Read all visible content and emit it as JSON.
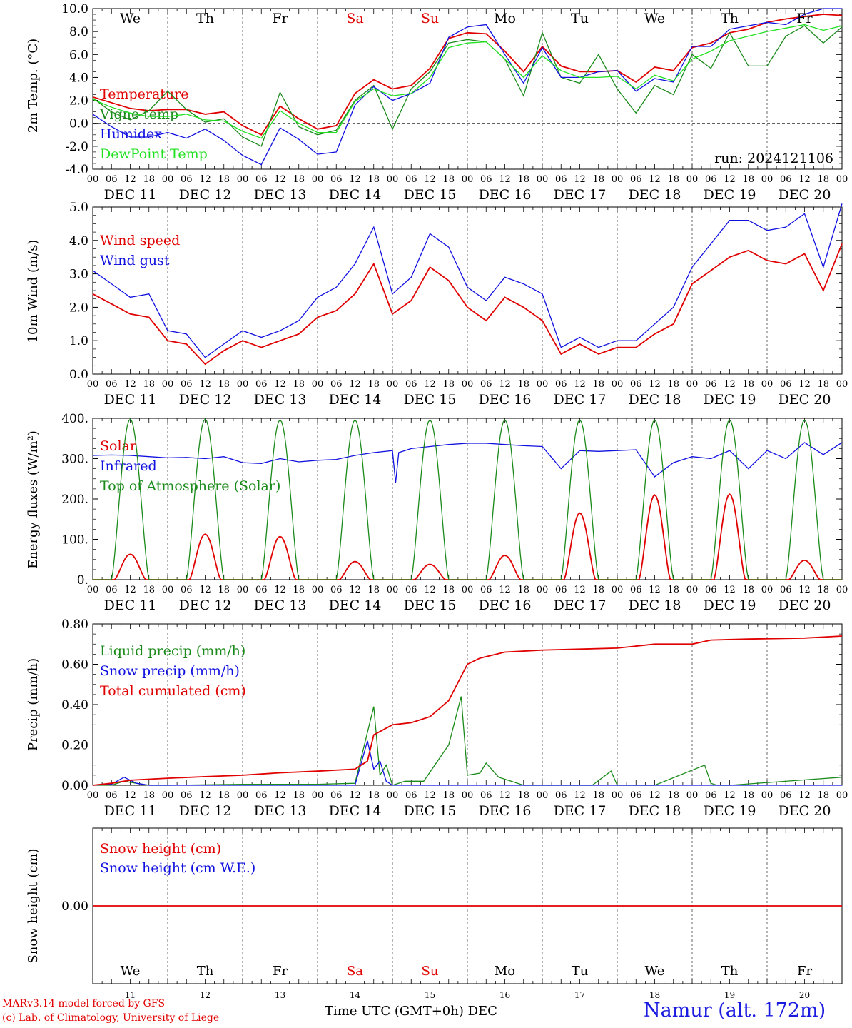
{
  "days": [
    "We",
    "Th",
    "Fr",
    "Sa",
    "Su",
    "Mo",
    "Tu",
    "We",
    "Th",
    "Fr"
  ],
  "day_colors": [
    "#000",
    "#000",
    "#000",
    "#e00000",
    "#e00000",
    "#000",
    "#000",
    "#000",
    "#000",
    "#000"
  ],
  "dates": [
    "DEC 11",
    "DEC 12",
    "DEC 13",
    "DEC 14",
    "DEC 15",
    "DEC 16",
    "DEC 17",
    "DEC 18",
    "DEC 19",
    "DEC 20"
  ],
  "date_nums": [
    "11",
    "12",
    "13",
    "14",
    "15",
    "16",
    "17",
    "18",
    "19",
    "20"
  ],
  "hour_labels": [
    "00",
    "06",
    "12",
    "18"
  ],
  "final_hour_label": "00",
  "footer": {
    "model": "MARv3.14 model forced by GFS",
    "lab": "(c) Lab. of Climatology, University of Liege",
    "xlabel": "Time UTC (GMT+0h) DEC",
    "station": "Namur (alt. 172m)",
    "run": "run: 2024121106"
  },
  "chart_data": [
    {
      "type": "line",
      "ylabel": "2m Temp. (°C)",
      "ylim": [
        -4,
        10
      ],
      "yticks": [
        -4,
        -2,
        0,
        2,
        4,
        6,
        8,
        10
      ],
      "ytick_labels": [
        "-4.0",
        "-2.0",
        "0.0",
        "2.0",
        "4.0",
        "6.0",
        "8.0",
        "10.0"
      ],
      "zero_line": 0,
      "x_unit": "hours since DEC 11 00 UTC",
      "series": [
        {
          "name": "Temperature",
          "color": "#e00000",
          "x": [
            0,
            6,
            12,
            18,
            24,
            30,
            36,
            42,
            48,
            54,
            60,
            66,
            72,
            78,
            84,
            90,
            96,
            102,
            108,
            114,
            120,
            126,
            132,
            138,
            144,
            150,
            156,
            162,
            168,
            174,
            180,
            186,
            192,
            198,
            204,
            210,
            216,
            222,
            228,
            234,
            240
          ],
          "y": [
            2.3,
            1.8,
            1.3,
            1.1,
            1.2,
            1.2,
            0.8,
            1.0,
            -0.2,
            -1.0,
            1.5,
            0.4,
            -0.5,
            -0.2,
            2.6,
            3.8,
            3.0,
            3.3,
            4.8,
            7.4,
            7.9,
            7.8,
            6.3,
            4.5,
            6.7,
            5.0,
            4.5,
            4.5,
            4.6,
            3.6,
            4.9,
            4.6,
            6.6,
            7.0,
            7.9,
            8.2,
            8.8,
            9.1,
            9.3,
            9.5,
            9.4
          ]
        },
        {
          "name": "Vigne temp",
          "color": "#1a8a1a",
          "x": [
            0,
            6,
            12,
            18,
            24,
            30,
            36,
            42,
            48,
            54,
            60,
            66,
            72,
            78,
            84,
            90,
            96,
            102,
            108,
            114,
            120,
            126,
            132,
            138,
            144,
            150,
            156,
            162,
            168,
            174,
            180,
            186,
            192,
            198,
            204,
            210,
            216,
            222,
            228,
            234,
            240
          ],
          "y": [
            2.2,
            1.0,
            0.3,
            1.1,
            2.8,
            1.2,
            0.1,
            0.4,
            -1.2,
            -2.0,
            2.7,
            -0.3,
            -1.0,
            -0.6,
            2.0,
            3.3,
            -0.5,
            3.0,
            4.5,
            7.0,
            7.3,
            7.1,
            5.6,
            2.4,
            7.9,
            4.0,
            3.5,
            6.0,
            3.0,
            0.9,
            3.3,
            2.5,
            6.0,
            4.8,
            7.9,
            5.0,
            5.0,
            7.6,
            8.5,
            7.0,
            8.4
          ]
        },
        {
          "name": "Humidex",
          "color": "#1010e0",
          "x": [
            0,
            6,
            12,
            18,
            24,
            30,
            36,
            42,
            48,
            54,
            60,
            66,
            72,
            78,
            84,
            90,
            96,
            102,
            108,
            114,
            120,
            126,
            132,
            138,
            144,
            150,
            156,
            162,
            168,
            174,
            180,
            186,
            192,
            198,
            204,
            210,
            216,
            222,
            228,
            234,
            240
          ],
          "y": [
            0.8,
            -0.3,
            -1.2,
            -1.2,
            -0.8,
            -1.3,
            -0.5,
            -1.5,
            -2.8,
            -3.6,
            -0.4,
            -1.4,
            -2.7,
            -2.5,
            1.6,
            3.2,
            2.0,
            2.6,
            3.5,
            7.5,
            8.4,
            8.6,
            6.0,
            3.5,
            6.6,
            4.0,
            4.0,
            4.5,
            4.6,
            2.8,
            3.9,
            3.6,
            6.7,
            6.7,
            8.2,
            8.5,
            8.8,
            8.6,
            9.5,
            10.0,
            10.0
          ]
        },
        {
          "name": "DewPoint Temp",
          "color": "#22e022",
          "x": [
            0,
            6,
            12,
            18,
            24,
            30,
            36,
            42,
            48,
            54,
            60,
            66,
            72,
            78,
            84,
            90,
            96,
            102,
            108,
            114,
            120,
            126,
            132,
            138,
            144,
            150,
            156,
            162,
            168,
            174,
            180,
            186,
            192,
            198,
            204,
            210,
            216,
            222,
            228,
            234,
            240
          ],
          "y": [
            2.1,
            1.4,
            0.9,
            0.6,
            0.6,
            0.8,
            0.3,
            0.2,
            -0.7,
            -1.3,
            1.1,
            0.0,
            -0.8,
            -0.8,
            1.9,
            3.0,
            2.4,
            2.6,
            4.0,
            6.6,
            7.0,
            7.1,
            5.6,
            4.0,
            5.9,
            4.6,
            4.0,
            4.0,
            4.1,
            3.0,
            4.2,
            3.7,
            5.6,
            6.3,
            7.2,
            7.6,
            8.0,
            8.3,
            8.6,
            8.1,
            8.5
          ]
        }
      ],
      "legend_placement": "left"
    },
    {
      "type": "line",
      "ylabel": "10m Wind (m/s)",
      "ylim": [
        0,
        5
      ],
      "yticks": [
        0,
        1,
        2,
        3,
        4,
        5
      ],
      "ytick_labels": [
        "0.0",
        "1.0",
        "2.0",
        "3.0",
        "4.0",
        "5.0"
      ],
      "ref_line": 5,
      "series": [
        {
          "name": "Wind speed",
          "color": "#e00000",
          "x": [
            0,
            6,
            12,
            18,
            24,
            30,
            36,
            42,
            48,
            54,
            60,
            66,
            72,
            78,
            84,
            90,
            96,
            102,
            108,
            114,
            120,
            126,
            132,
            138,
            144,
            150,
            156,
            162,
            168,
            174,
            180,
            186,
            192,
            198,
            204,
            210,
            216,
            222,
            228,
            234,
            240
          ],
          "y": [
            2.4,
            2.1,
            1.8,
            1.7,
            1.0,
            0.9,
            0.3,
            0.7,
            1.0,
            0.8,
            1.0,
            1.2,
            1.7,
            1.9,
            2.4,
            3.3,
            1.8,
            2.2,
            3.2,
            2.8,
            2.0,
            1.6,
            2.3,
            2.0,
            1.6,
            0.6,
            0.9,
            0.6,
            0.8,
            0.8,
            1.2,
            1.5,
            2.7,
            3.1,
            3.5,
            3.7,
            3.4,
            3.3,
            3.6,
            2.5,
            3.9
          ]
        },
        {
          "name": "Wind gust",
          "color": "#1010e0",
          "x": [
            0,
            6,
            12,
            18,
            24,
            30,
            36,
            42,
            48,
            54,
            60,
            66,
            72,
            78,
            84,
            90,
            96,
            102,
            108,
            114,
            120,
            126,
            132,
            138,
            144,
            150,
            156,
            162,
            168,
            174,
            180,
            186,
            192,
            198,
            204,
            210,
            216,
            222,
            228,
            234,
            240
          ],
          "y": [
            3.1,
            2.7,
            2.3,
            2.4,
            1.3,
            1.2,
            0.5,
            0.9,
            1.3,
            1.1,
            1.3,
            1.6,
            2.3,
            2.6,
            3.3,
            4.4,
            2.4,
            2.9,
            4.2,
            3.8,
            2.6,
            2.2,
            2.9,
            2.7,
            2.4,
            0.8,
            1.1,
            0.8,
            1.0,
            1.0,
            1.5,
            2.0,
            3.2,
            3.9,
            4.6,
            4.6,
            4.3,
            4.4,
            4.8,
            3.2,
            5.1
          ]
        }
      ],
      "legend_placement": "left"
    },
    {
      "type": "line",
      "ylabel": "Energy fluxes (W/m²)",
      "ylim": [
        0,
        400
      ],
      "yticks": [
        0,
        100,
        200,
        300,
        400
      ],
      "ytick_labels": [
        "0.",
        "100.",
        "200.",
        "300.",
        "400."
      ],
      "series": [
        {
          "name": "Solar",
          "color": "#e00000",
          "type": "daily_bell",
          "day_peaks": [
            63,
            113,
            107,
            45,
            38,
            60,
            165,
            210,
            212,
            48
          ]
        },
        {
          "name": "Infrared",
          "color": "#1010e0",
          "x": [
            0,
            6,
            12,
            18,
            24,
            30,
            36,
            42,
            48,
            54,
            60,
            66,
            72,
            78,
            84,
            90,
            96,
            97,
            98,
            102,
            108,
            114,
            120,
            126,
            132,
            138,
            144,
            150,
            156,
            162,
            168,
            174,
            180,
            186,
            192,
            198,
            204,
            210,
            216,
            222,
            228,
            234,
            240
          ],
          "y": [
            308,
            309,
            308,
            305,
            302,
            303,
            300,
            305,
            290,
            288,
            300,
            292,
            296,
            298,
            308,
            315,
            320,
            240,
            315,
            325,
            330,
            335,
            338,
            338,
            335,
            332,
            330,
            275,
            320,
            318,
            320,
            322,
            255,
            290,
            305,
            300,
            320,
            275,
            320,
            300,
            340,
            310,
            340
          ]
        },
        {
          "name": "Top of Atmosphere (Solar)",
          "color": "#1a8a1a",
          "type": "daily_bell",
          "day_peaks": [
            398,
            398,
            396,
            396,
            396,
            396,
            396,
            396,
            396,
            396
          ]
        }
      ],
      "legend_placement": "left"
    },
    {
      "type": "line",
      "ylabel": "Precip (mm/h)",
      "ylim": [
        0,
        0.8
      ],
      "yticks": [
        0,
        0.2,
        0.4,
        0.6,
        0.8
      ],
      "ytick_labels": [
        "0.00",
        "0.20",
        "0.40",
        "0.60",
        "0.80"
      ],
      "series": [
        {
          "name": "Liquid precip (mm/h)",
          "color": "#1a8a1a",
          "x": [
            0,
            6,
            10,
            14,
            18,
            24,
            48,
            72,
            84,
            90,
            92,
            94,
            96,
            100,
            106,
            114,
            118,
            120,
            124,
            126,
            130,
            134,
            138,
            144,
            160,
            166,
            168,
            174,
            180,
            196,
            198,
            200,
            204,
            240
          ],
          "y": [
            0,
            0,
            0.02,
            0.01,
            0,
            0,
            0.005,
            0.005,
            0.01,
            0.39,
            0.05,
            0.1,
            0,
            0.02,
            0.02,
            0.2,
            0.44,
            0.05,
            0.06,
            0.11,
            0.04,
            0.02,
            0,
            0,
            0,
            0.07,
            0,
            0,
            0,
            0.1,
            0.01,
            0,
            0,
            0.04
          ]
        },
        {
          "name": "Snow precip (mm/h)",
          "color": "#1010e0",
          "x": [
            0,
            6,
            10,
            14,
            18,
            24,
            84,
            88,
            90,
            92,
            94,
            96,
            100,
            240
          ],
          "y": [
            0,
            0.005,
            0.04,
            0.01,
            0,
            0,
            0,
            0.22,
            0.08,
            0.12,
            0.02,
            0,
            0,
            0
          ]
        },
        {
          "name": "Total cumulated (cm)",
          "color": "#e00000",
          "x": [
            0,
            6,
            12,
            24,
            36,
            48,
            60,
            72,
            84,
            88,
            90,
            96,
            102,
            108,
            114,
            120,
            124,
            132,
            144,
            156,
            168,
            180,
            192,
            198,
            210,
            228,
            240
          ],
          "y": [
            0,
            0.01,
            0.025,
            0.035,
            0.043,
            0.05,
            0.062,
            0.07,
            0.08,
            0.12,
            0.25,
            0.3,
            0.31,
            0.34,
            0.42,
            0.6,
            0.63,
            0.66,
            0.67,
            0.675,
            0.68,
            0.7,
            0.7,
            0.72,
            0.725,
            0.73,
            0.74
          ]
        }
      ],
      "legend_placement": "left"
    },
    {
      "type": "line",
      "ylabel": "Snow height (cm)",
      "ylim": [
        -1,
        1
      ],
      "yticks": [
        0
      ],
      "ytick_labels": [
        "0.00"
      ],
      "series": [
        {
          "name": "Snow height (cm)",
          "color": "#e00000",
          "x": [
            0,
            240
          ],
          "y": [
            0,
            0
          ]
        },
        {
          "name": "Snow height (cm W.E.)",
          "color": "#1010e0",
          "x": [],
          "y": []
        }
      ],
      "legend_placement": "left"
    }
  ]
}
